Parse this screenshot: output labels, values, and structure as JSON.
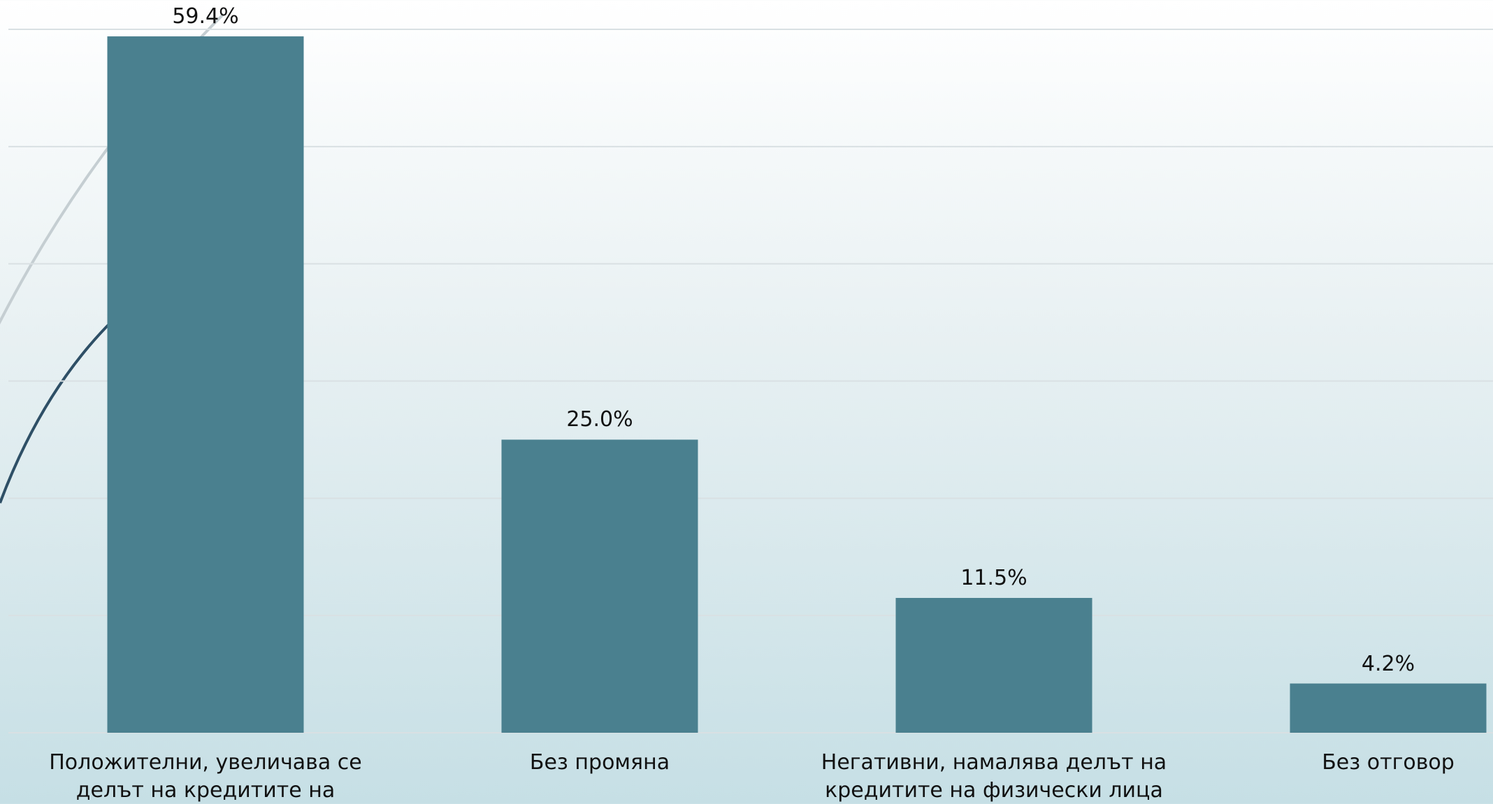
{
  "chart_data": {
    "type": "bar",
    "categories": [
      "Положителни, увеличава се делът на кредитите на физически лица",
      "Без промяна",
      "Негативни, намалява делът на кредитите на физически лица",
      "Без отговор"
    ],
    "values": [
      59.4,
      25.0,
      11.5,
      4.2
    ],
    "value_labels": [
      "59.4%",
      "25.0%",
      "11.5%",
      "4.2%"
    ],
    "color": "#4a808f",
    "ylim": [
      0,
      60
    ],
    "yticks": [
      0,
      10,
      20,
      30,
      40,
      50,
      60
    ],
    "grid": true
  }
}
